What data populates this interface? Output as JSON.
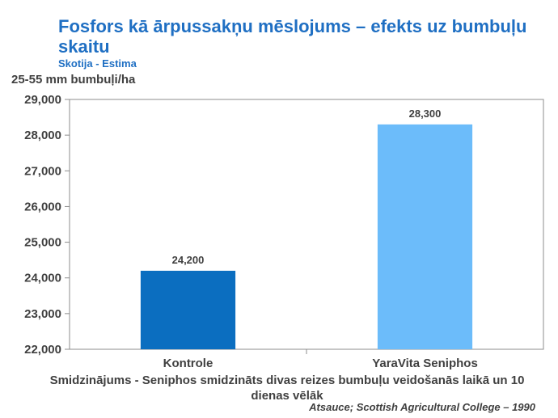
{
  "header": {
    "title": "Fosfors kā ārpussakņu mēslojums – efekts uz bumbuļu skaitu",
    "subtitle": "Skotija - Estima",
    "ylabel": "25-55 mm bumbuļi/ha"
  },
  "footer": {
    "caption": "Smidzinājums - Seniphos smidzināts divas reizes bumbuļu veidošanās laikā un 10 dienas vēlāk",
    "source": "Atsauce; Scottish Agricultural College – 1990"
  },
  "chart_data": {
    "type": "bar",
    "title": "Fosfors kā ārpussakņu mēslojums – efekts uz bumbuļu skaitu",
    "subtitle": "Skotija - Estima",
    "ylabel": "25-55 mm bumbuļi/ha",
    "categories": [
      "Kontrole",
      "YaraVita Seniphos"
    ],
    "values": [
      24200,
      28300
    ],
    "value_labels": [
      "24,200",
      "28,300"
    ],
    "colors": [
      "#0b6ec0",
      "#6cbcfa"
    ],
    "ylim": [
      22000,
      29000
    ],
    "yticks": [
      22000,
      23000,
      24000,
      25000,
      26000,
      27000,
      28000,
      29000
    ],
    "ytick_labels": [
      "22,000",
      "23,000",
      "24,000",
      "25,000",
      "26,000",
      "27,000",
      "28,000",
      "29,000"
    ],
    "grid": false,
    "legend": "none"
  }
}
